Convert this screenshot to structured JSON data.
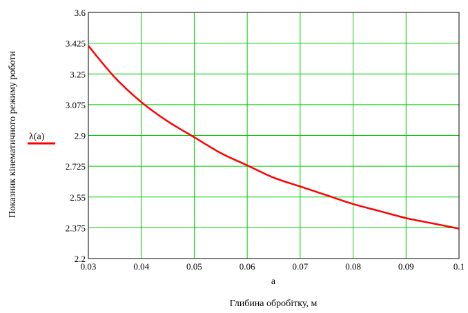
{
  "chart_data": {
    "type": "line",
    "x_var": "a",
    "xlabel": "Глибина обробітку, м",
    "ylabel": "Показник кінематичного режиму роботи",
    "xlim": [
      0.03,
      0.1
    ],
    "ylim": [
      2.2,
      3.6
    ],
    "x_ticks": [
      "0.03",
      "0.04",
      "0.05",
      "0.06",
      "0.07",
      "0.08",
      "0.09",
      "0.1"
    ],
    "y_ticks": [
      "2.2",
      "2.375",
      "2.55",
      "2.725",
      "2.9",
      "3.075",
      "3.25",
      "3.425",
      "3.6"
    ],
    "grid": true,
    "grid_color": "#00cc00",
    "legend_position": "left",
    "series": [
      {
        "name": "λ(a)",
        "color": "#ff0000",
        "x": [
          0.03,
          0.035,
          0.04,
          0.045,
          0.05,
          0.055,
          0.06,
          0.065,
          0.07,
          0.075,
          0.08,
          0.085,
          0.09,
          0.095,
          0.1
        ],
        "y": [
          3.41,
          3.23,
          3.09,
          2.98,
          2.89,
          2.8,
          2.73,
          2.66,
          2.61,
          2.56,
          2.51,
          2.47,
          2.43,
          2.4,
          2.37
        ]
      }
    ]
  }
}
